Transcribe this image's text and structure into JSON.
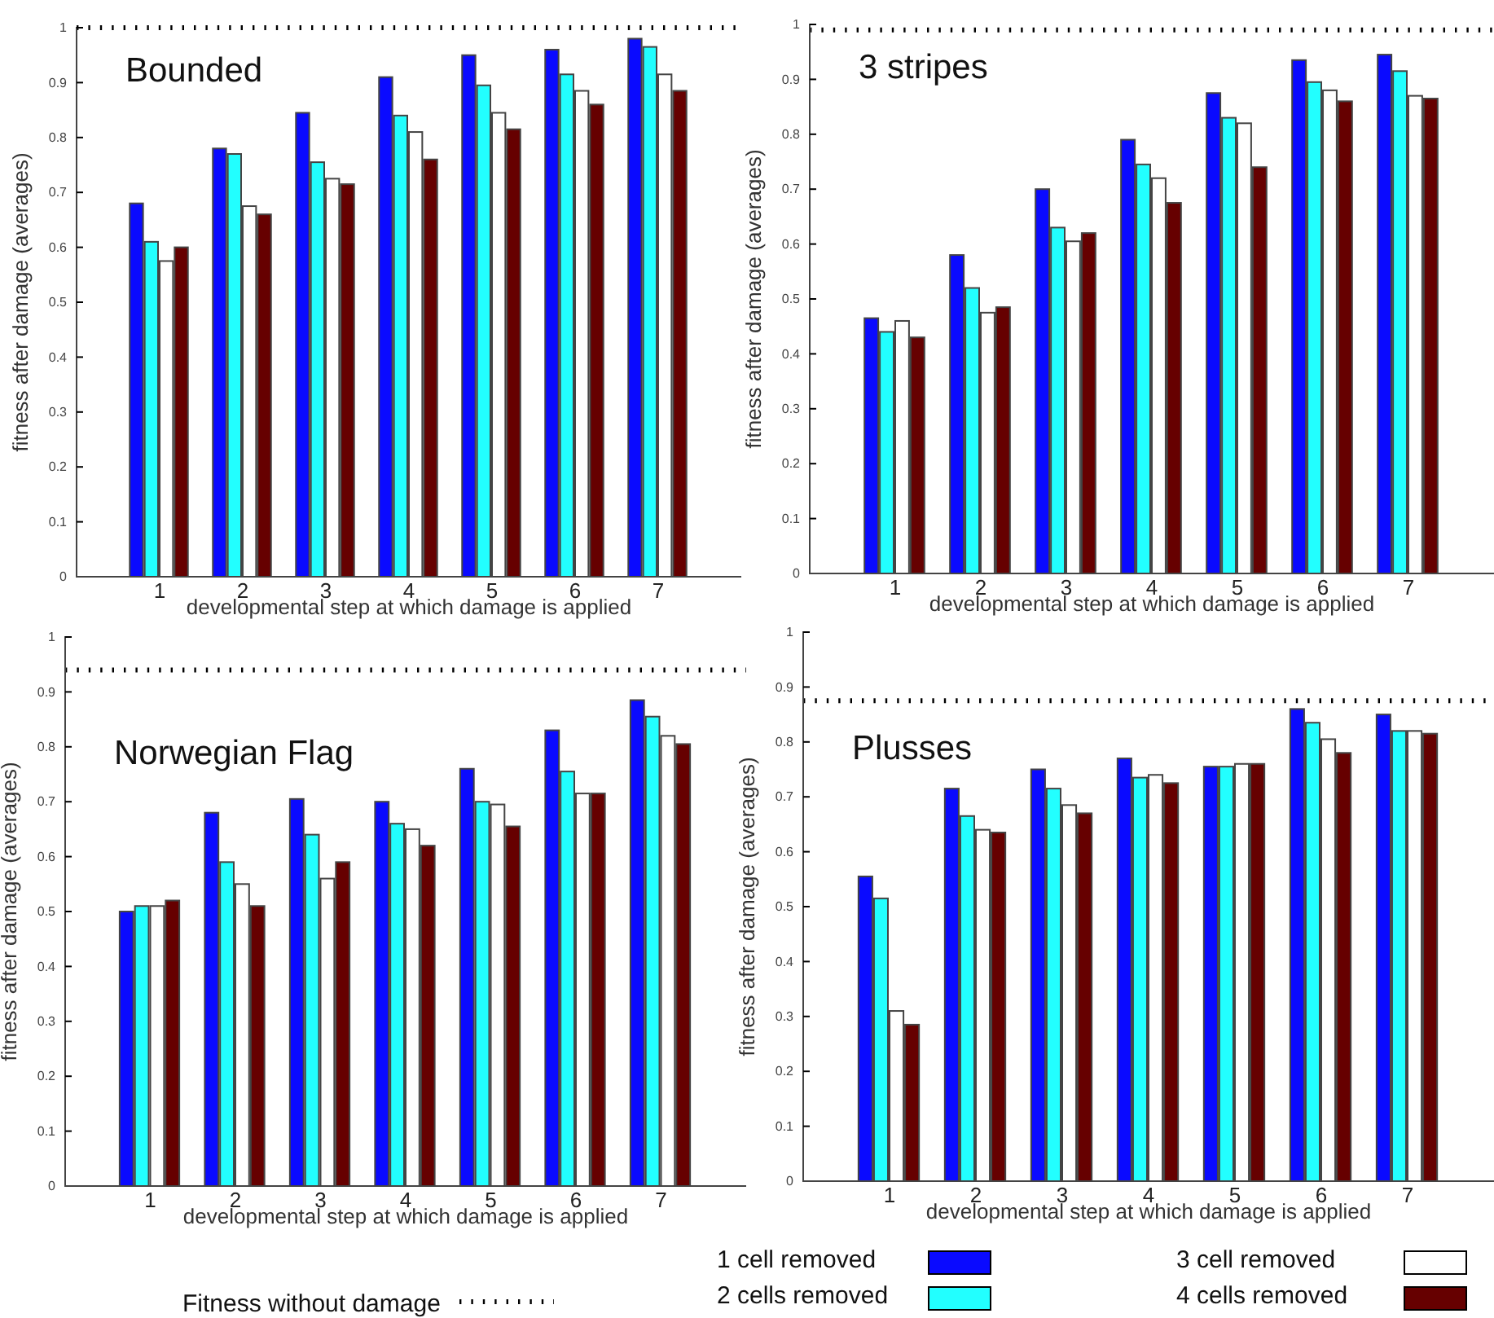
{
  "chart_data": [
    {
      "type": "bar",
      "title": "Bounded",
      "xlabel": "developmental step at which damage is applied",
      "ylabel": "fitness after damage (averages)",
      "categories": [
        "1",
        "2",
        "3",
        "4",
        "5",
        "6",
        "7"
      ],
      "ylim": [
        0,
        1
      ],
      "yticks": [
        0,
        0.1,
        0.2,
        0.3,
        0.4,
        0.5,
        0.6,
        0.7,
        0.8,
        0.9,
        1
      ],
      "series": [
        {
          "color": "#0a0aff",
          "values": [
            0.68,
            0.78,
            0.845,
            0.91,
            0.95,
            0.96,
            0.98
          ]
        },
        {
          "color": "#22ffff",
          "values": [
            0.61,
            0.77,
            0.755,
            0.84,
            0.895,
            0.915,
            0.965
          ]
        },
        {
          "color": "#ffffff",
          "values": [
            0.575,
            0.675,
            0.725,
            0.81,
            0.845,
            0.885,
            0.915
          ]
        },
        {
          "color": "#660000",
          "values": [
            0.6,
            0.66,
            0.715,
            0.76,
            0.815,
            0.86,
            0.885
          ]
        }
      ],
      "ref_lines": [
        {
          "axis": "y",
          "value": 1,
          "line_style": "dotted"
        }
      ],
      "grid": false
    },
    {
      "type": "bar",
      "title": "3 stripes",
      "xlabel": "developmental step at which damage is applied",
      "ylabel": "fitness after damage (averages)",
      "categories": [
        "1",
        "2",
        "3",
        "4",
        "5",
        "6",
        "7"
      ],
      "ylim": [
        0,
        1
      ],
      "yticks": [
        0,
        0.1,
        0.2,
        0.3,
        0.4,
        0.5,
        0.6,
        0.7,
        0.8,
        0.9,
        1
      ],
      "series": [
        {
          "color": "#0a0aff",
          "values": [
            0.465,
            0.58,
            0.7,
            0.79,
            0.875,
            0.935,
            0.945
          ]
        },
        {
          "color": "#22ffff",
          "values": [
            0.44,
            0.52,
            0.63,
            0.745,
            0.83,
            0.895,
            0.915
          ]
        },
        {
          "color": "#ffffff",
          "values": [
            0.46,
            0.475,
            0.605,
            0.72,
            0.82,
            0.88,
            0.87
          ]
        },
        {
          "color": "#660000",
          "values": [
            0.43,
            0.485,
            0.62,
            0.675,
            0.74,
            0.86,
            0.865
          ]
        }
      ],
      "ref_lines": [
        {
          "axis": "y",
          "value": 0.99,
          "line_style": "dotted"
        }
      ],
      "grid": false
    },
    {
      "type": "bar",
      "title": "Norwegian Flag",
      "xlabel": "developmental step at which damage is applied",
      "ylabel": "fitness after damage (averages)",
      "categories": [
        "1",
        "2",
        "3",
        "4",
        "5",
        "6",
        "7"
      ],
      "ylim": [
        0,
        1
      ],
      "yticks": [
        0,
        0.1,
        0.2,
        0.3,
        0.4,
        0.5,
        0.6,
        0.7,
        0.8,
        0.9,
        1
      ],
      "series": [
        {
          "color": "#0a0aff",
          "values": [
            0.5,
            0.68,
            0.705,
            0.7,
            0.76,
            0.83,
            0.885
          ]
        },
        {
          "color": "#22ffff",
          "values": [
            0.51,
            0.59,
            0.64,
            0.66,
            0.7,
            0.755,
            0.855
          ]
        },
        {
          "color": "#ffffff",
          "values": [
            0.51,
            0.55,
            0.56,
            0.65,
            0.695,
            0.715,
            0.82
          ]
        },
        {
          "color": "#660000",
          "values": [
            0.52,
            0.51,
            0.59,
            0.62,
            0.655,
            0.715,
            0.805
          ]
        }
      ],
      "ref_lines": [
        {
          "axis": "y",
          "value": 0.94,
          "line_style": "dotted"
        }
      ],
      "grid": false
    },
    {
      "type": "bar",
      "title": "Plusses",
      "xlabel": "developmental step at which damage is applied",
      "ylabel": "fitness after damage (averages)",
      "categories": [
        "1",
        "2",
        "3",
        "4",
        "5",
        "6",
        "7"
      ],
      "ylim": [
        0,
        1
      ],
      "yticks": [
        0,
        0.1,
        0.2,
        0.3,
        0.4,
        0.5,
        0.6,
        0.7,
        0.8,
        0.9,
        1
      ],
      "series": [
        {
          "name": "1 cell removed",
          "color": "#0a0aff",
          "values": [
            0.555,
            0.715,
            0.75,
            0.77,
            0.755,
            0.86,
            0.85
          ]
        },
        {
          "name": "2 cells removed",
          "color": "#22ffff",
          "values": [
            0.515,
            0.665,
            0.715,
            0.735,
            0.755,
            0.835,
            0.82
          ]
        },
        {
          "name": "3 cell removed",
          "color": "#ffffff",
          "values": [
            0.31,
            0.64,
            0.685,
            0.74,
            0.76,
            0.805,
            0.82
          ]
        },
        {
          "name": "4 cells removed",
          "color": "#660000",
          "values": [
            0.285,
            0.635,
            0.67,
            0.725,
            0.76,
            0.78,
            0.815
          ]
        }
      ],
      "ref_lines": [
        {
          "axis": "y",
          "value": 0.875,
          "label": "Fitness without damage",
          "line_style": "dotted"
        }
      ],
      "grid": false,
      "legend": "bottom"
    }
  ]
}
